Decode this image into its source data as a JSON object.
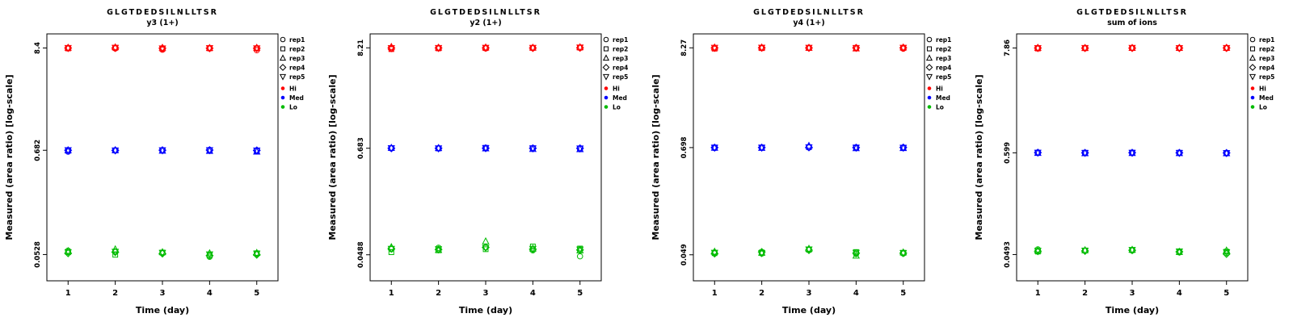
{
  "figure": {
    "x_axis_label": "Time (day)",
    "y_axis_label": "Measured (area ratio) [log-scale]",
    "x_ticks": [
      "1",
      "2",
      "3",
      "4",
      "5"
    ]
  },
  "legend": {
    "reps": [
      {
        "label": "rep1",
        "shape": "circle"
      },
      {
        "label": "rep2",
        "shape": "square"
      },
      {
        "label": "rep3",
        "shape": "triangle-up"
      },
      {
        "label": "rep4",
        "shape": "diamond"
      },
      {
        "label": "rep5",
        "shape": "triangle-down"
      }
    ],
    "levels": [
      {
        "label": "Hi",
        "color": "#FF0000"
      },
      {
        "label": "Med",
        "color": "#0000FF"
      },
      {
        "label": "Lo",
        "color": "#00BB00"
      }
    ]
  },
  "chart_data": [
    {
      "type": "scatter",
      "title": "GLGTDEDSILNLLTSR",
      "subtitle": "y3 (1+)",
      "xlabel": "Time (day)",
      "ylabel": "Measured (area ratio) [log-scale]",
      "y_scale": "log",
      "x": [
        1,
        2,
        3,
        4,
        5
      ],
      "ytick_labels": [
        "8.4",
        "0.682",
        "0.0528"
      ],
      "series": [
        {
          "name": "Hi",
          "color": "#FF0000",
          "values_by_day": [
            [
              8.35,
              8.3,
              8.45,
              8.4,
              8.38
            ],
            [
              8.3,
              8.45,
              8.55,
              8.4,
              8.42
            ],
            [
              8.05,
              8.2,
              8.45,
              8.35,
              8.3
            ],
            [
              8.3,
              8.33,
              8.4,
              8.35,
              8.37
            ],
            [
              7.95,
              8.3,
              8.45,
              8.35,
              8.32
            ]
          ]
        },
        {
          "name": "Med",
          "color": "#0000FF",
          "values_by_day": [
            [
              0.66,
              0.685,
              0.68,
              0.682,
              0.683
            ],
            [
              0.678,
              0.68,
              0.684,
              0.681,
              0.679
            ],
            [
              0.68,
              0.682,
              0.676,
              0.684,
              0.681
            ],
            [
              0.69,
              0.681,
              0.672,
              0.685,
              0.683
            ],
            [
              0.676,
              0.67,
              0.66,
              0.681,
              0.678
            ]
          ]
        },
        {
          "name": "Lo",
          "color": "#00BB00",
          "values_by_day": [
            [
              0.058,
              0.056,
              0.0575,
              0.0545,
              0.056
            ],
            [
              0.057,
              0.0525,
              0.06,
              0.056,
              0.0565
            ],
            [
              0.0545,
              0.0555,
              0.056,
              0.054,
              0.055
            ],
            [
              0.05,
              0.052,
              0.0545,
              0.0515,
              0.053
            ],
            [
              0.0535,
              0.0545,
              0.055,
              0.0525,
              0.054
            ]
          ]
        }
      ]
    },
    {
      "type": "scatter",
      "title": "GLGTDEDSILNLLTSR",
      "subtitle": "y2 (1+)",
      "xlabel": "Time (day)",
      "ylabel": "Measured (area ratio) [log-scale]",
      "y_scale": "log",
      "x": [
        1,
        2,
        3,
        4,
        5
      ],
      "ytick_labels": [
        "8.21",
        "0.683",
        "0.0488"
      ],
      "series": [
        {
          "name": "Hi",
          "color": "#FF0000",
          "values_by_day": [
            [
              8.0,
              7.95,
              8.4,
              8.2,
              8.15
            ],
            [
              8.15,
              8.1,
              8.25,
              8.2,
              8.18
            ],
            [
              8.1,
              8.15,
              8.3,
              8.2,
              8.22
            ],
            [
              8.15,
              8.2,
              8.25,
              8.18,
              8.2
            ],
            [
              8.2,
              8.25,
              8.35,
              8.22,
              8.28
            ]
          ]
        },
        {
          "name": "Med",
          "color": "#0000FF",
          "values_by_day": [
            [
              0.68,
              0.685,
              0.69,
              0.683,
              0.684
            ],
            [
              0.682,
              0.68,
              0.686,
              0.683,
              0.681
            ],
            [
              0.685,
              0.69,
              0.68,
              0.684,
              0.686
            ],
            [
              0.682,
              0.684,
              0.67,
              0.683,
              0.681
            ],
            [
              0.678,
              0.68,
              0.668,
              0.682,
              0.679
            ]
          ]
        },
        {
          "name": "Lo",
          "color": "#00BB00",
          "values_by_day": [
            [
              0.056,
              0.052,
              0.059,
              0.057,
              0.0565
            ],
            [
              0.058,
              0.0545,
              0.055,
              0.0555,
              0.056
            ],
            [
              0.059,
              0.056,
              0.068,
              0.0585,
              0.058
            ],
            [
              0.0545,
              0.06,
              0.057,
              0.056,
              0.0565
            ],
            [
              0.047,
              0.057,
              0.0545,
              0.055,
              0.0555
            ]
          ]
        }
      ]
    },
    {
      "type": "scatter",
      "title": "GLGTDEDSILNLLTSR",
      "subtitle": "y4 (1+)",
      "xlabel": "Time (day)",
      "ylabel": "Measured (area ratio) [log-scale]",
      "y_scale": "log",
      "x": [
        1,
        2,
        3,
        4,
        5
      ],
      "ytick_labels": [
        "8.27",
        "0.698",
        "0.049"
      ],
      "series": [
        {
          "name": "Hi",
          "color": "#FF0000",
          "values_by_day": [
            [
              8.2,
              8.1,
              8.35,
              8.25,
              8.27
            ],
            [
              8.25,
              8.2,
              8.35,
              8.27,
              8.3
            ],
            [
              8.22,
              8.25,
              8.28,
              8.26,
              8.27
            ],
            [
              8.2,
              8.25,
              8.15,
              8.27,
              8.24
            ],
            [
              8.1,
              8.25,
              8.35,
              8.27,
              8.28
            ]
          ]
        },
        {
          "name": "Med",
          "color": "#0000FF",
          "values_by_day": [
            [
              0.69,
              0.7,
              0.695,
              0.698,
              0.696
            ],
            [
              0.696,
              0.7,
              0.693,
              0.698,
              0.697
            ],
            [
              0.7,
              0.705,
              0.73,
              0.702,
              0.704
            ],
            [
              0.695,
              0.7,
              0.688,
              0.698,
              0.696
            ],
            [
              0.693,
              0.698,
              0.69,
              0.7,
              0.695
            ]
          ]
        },
        {
          "name": "Lo",
          "color": "#00BB00",
          "values_by_day": [
            [
              0.052,
              0.051,
              0.053,
              0.0505,
              0.0515
            ],
            [
              0.0505,
              0.052,
              0.0515,
              0.0525,
              0.051
            ],
            [
              0.056,
              0.0555,
              0.057,
              0.055,
              0.056
            ],
            [
              0.05,
              0.0525,
              0.048,
              0.051,
              0.0515
            ],
            [
              0.0505,
              0.0515,
              0.052,
              0.051,
              0.0512
            ]
          ]
        }
      ]
    },
    {
      "type": "scatter",
      "title": "GLGTDEDSILNLLTSR",
      "subtitle": "sum of ions",
      "xlabel": "Time (day)",
      "ylabel": "Measured (area ratio) [log-scale]",
      "y_scale": "log",
      "x": [
        1,
        2,
        3,
        4,
        5
      ],
      "ytick_labels": [
        "7.86",
        "0.599",
        "0.0493"
      ],
      "series": [
        {
          "name": "Hi",
          "color": "#FF0000",
          "values_by_day": [
            [
              7.8,
              7.75,
              7.9,
              7.85,
              7.83
            ],
            [
              7.8,
              7.83,
              7.86,
              7.84,
              7.85
            ],
            [
              7.82,
              7.85,
              7.88,
              7.84,
              7.86
            ],
            [
              7.8,
              7.84,
              7.88,
              7.85,
              7.83
            ],
            [
              7.8,
              7.85,
              7.9,
              7.86,
              7.84
            ]
          ]
        },
        {
          "name": "Med",
          "color": "#0000FF",
          "values_by_day": [
            [
              0.605,
              0.6,
              0.598,
              0.602,
              0.601
            ],
            [
              0.597,
              0.6,
              0.594,
              0.599,
              0.598
            ],
            [
              0.6,
              0.602,
              0.596,
              0.601,
              0.599
            ],
            [
              0.598,
              0.6,
              0.595,
              0.599,
              0.597
            ],
            [
              0.59,
              0.596,
              0.593,
              0.597,
              0.594
            ]
          ]
        },
        {
          "name": "Lo",
          "color": "#00BB00",
          "values_by_day": [
            [
              0.056,
              0.053,
              0.0545,
              0.0535,
              0.054
            ],
            [
              0.054,
              0.0545,
              0.055,
              0.0538,
              0.0542
            ],
            [
              0.0545,
              0.055,
              0.0555,
              0.0548,
              0.0552
            ],
            [
              0.052,
              0.053,
              0.0525,
              0.0528,
              0.0532
            ],
            [
              0.051,
              0.053,
              0.0545,
              0.05,
              0.052
            ]
          ]
        }
      ]
    }
  ]
}
